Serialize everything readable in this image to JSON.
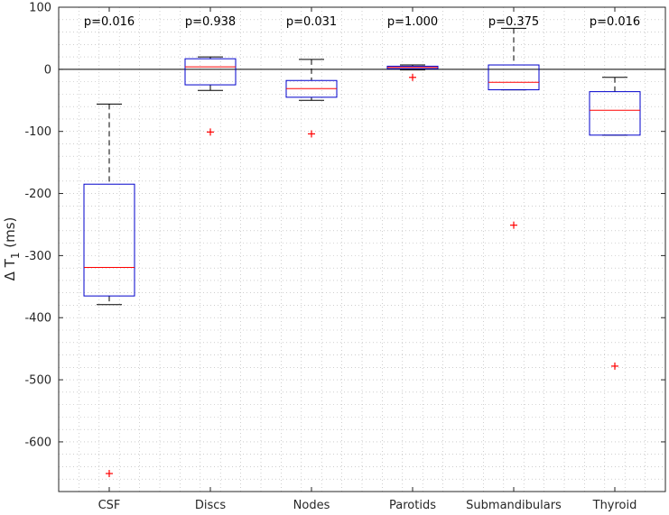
{
  "chart_data": {
    "type": "boxplot",
    "ylabel": "Δ T₁ (ms)",
    "ylim": [
      -680,
      100
    ],
    "yticks": [
      100,
      0,
      -100,
      -200,
      -300,
      -400,
      -500,
      -600
    ],
    "ytick_labels": [
      "100",
      "0",
      "-100",
      "-200",
      "-300",
      "-400",
      "-500",
      "-600"
    ],
    "grid": "minor dotted",
    "reference_line": 0,
    "categories": [
      "CSF",
      "Discs",
      "Nodes",
      "Parotids",
      "Submandibulars",
      "Thyroid"
    ],
    "p_values": [
      "p=0.016",
      "p=0.938",
      "p=0.031",
      "p=1.000",
      "p=0.375",
      "p=0.016"
    ],
    "boxes": [
      {
        "q1": -365,
        "median": -319,
        "q3": -185,
        "whisker_low": -379,
        "whisker_high": -56,
        "outliers": [
          -651
        ]
      },
      {
        "q1": -25,
        "median": 4,
        "q3": 17,
        "whisker_low": -34,
        "whisker_high": 20,
        "outliers": [
          -101
        ]
      },
      {
        "q1": -45,
        "median": -31,
        "q3": -18,
        "whisker_low": -50,
        "whisker_high": 16,
        "outliers": [
          -104
        ]
      },
      {
        "q1": 1,
        "median": 3,
        "q3": 5,
        "whisker_low": -1,
        "whisker_high": 7,
        "outliers": [
          -13
        ]
      },
      {
        "q1": -33,
        "median": -21,
        "q3": 7,
        "whisker_low": -33,
        "whisker_high": 66,
        "outliers": [
          -251
        ]
      },
      {
        "q1": -106,
        "median": -66,
        "q3": -36,
        "whisker_low": -106,
        "whisker_high": -13,
        "outliers": [
          -478
        ]
      }
    ],
    "colors": {
      "box": "#0000cc",
      "median": "#ff0000",
      "whisker": "#000000",
      "outlier": "#ff0000",
      "grid": "#b0b0b0"
    }
  }
}
